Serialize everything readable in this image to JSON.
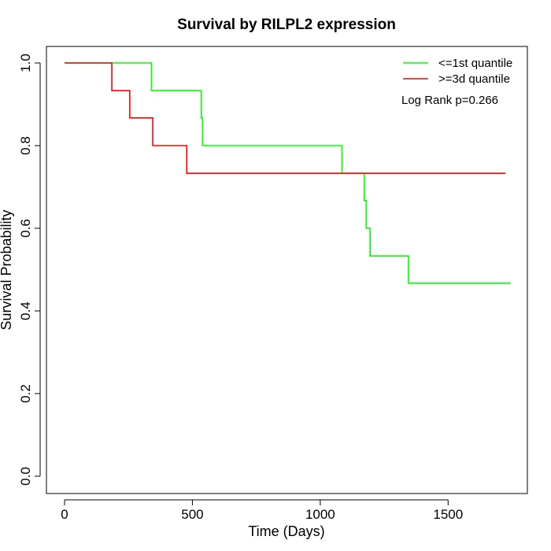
{
  "chart_data": {
    "type": "line",
    "step": true,
    "title": "Survival by RILPL2 expression",
    "xlabel": "Time (Days)",
    "ylabel": "Survival Probability",
    "xlim": [
      0,
      1800
    ],
    "ylim": [
      0,
      1
    ],
    "x_ticks": [
      0,
      500,
      1000,
      1500
    ],
    "x_tick_labels": [
      "0",
      "500",
      "1000",
      "1500"
    ],
    "y_ticks": [
      0,
      0.2,
      0.4,
      0.6,
      0.8,
      1
    ],
    "y_tick_labels": [
      "0.0",
      "0.2",
      "0.4",
      "0.6",
      "0.8",
      "1.0"
    ],
    "grid": false,
    "legend_position": "top-right",
    "annotation": "Log Rank p=0.266",
    "series": [
      {
        "name": "<=1st quantile",
        "color": "#00ff00",
        "x": [
          0,
          340,
          535,
          540,
          1085,
          1172,
          1180,
          1195,
          1345,
          1745
        ],
        "y": [
          1.0,
          0.933,
          0.867,
          0.8,
          0.733,
          0.667,
          0.6,
          0.533,
          0.467,
          0.467
        ]
      },
      {
        "name": ">=3d quantile",
        "color": "#ff0000",
        "x": [
          0,
          185,
          255,
          345,
          478,
          1725
        ],
        "y": [
          1.0,
          0.933,
          0.867,
          0.8,
          0.733,
          0.733
        ]
      }
    ]
  }
}
